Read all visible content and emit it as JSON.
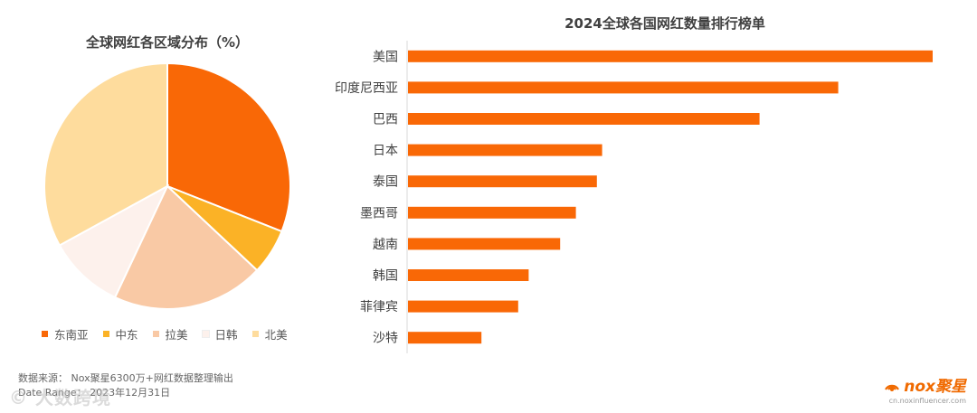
{
  "chart_data": [
    {
      "type": "pie",
      "title": "全球网红各区域分布（%）",
      "series": [
        {
          "name": "东南亚",
          "value": 31,
          "color": "#f96806"
        },
        {
          "name": "中东",
          "value": 6,
          "color": "#fbb226"
        },
        {
          "name": "拉美",
          "value": 20,
          "color": "#f9c9a5"
        },
        {
          "name": "日韩",
          "value": 10,
          "color": "#fdf1ec"
        },
        {
          "name": "北美",
          "value": 33,
          "color": "#fedc9d"
        }
      ],
      "legend_position": "bottom"
    },
    {
      "type": "bar",
      "orientation": "horizontal",
      "title": "2024全球各国网红数量排行榜单",
      "categories": [
        "美国",
        "印度尼西亚",
        "巴西",
        "日本",
        "泰国",
        "墨西哥",
        "越南",
        "韩国",
        "菲律宾",
        "沙特"
      ],
      "values": [
        100,
        82,
        67,
        37,
        36,
        32,
        29,
        23,
        21,
        14
      ],
      "color": "#f96806",
      "xlim": [
        0,
        100
      ],
      "grid": false
    }
  ],
  "footer": {
    "source": "数据来源：   Nox聚星6300万+网红数据整理输出",
    "date": "Date Range：  2023年12月31日"
  },
  "logo": {
    "brand": "nox聚星",
    "url": "cn.noxinfluencer.com"
  },
  "watermark": "© 大数跨境"
}
